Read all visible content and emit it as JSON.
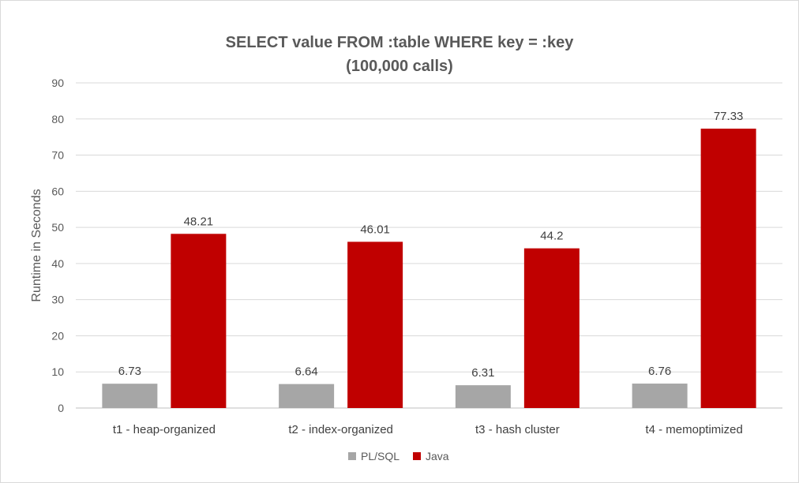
{
  "chart_data": {
    "type": "bar",
    "title_lines": [
      "SELECT value FROM :table WHERE key = :key",
      "(100,000 calls)"
    ],
    "xlabel": "",
    "ylabel": "Runtime in Seconds",
    "ylim": [
      0,
      90
    ],
    "yticks": [
      0,
      10,
      20,
      30,
      40,
      50,
      60,
      70,
      80,
      90
    ],
    "grid": true,
    "legend_position": "bottom",
    "categories": [
      "t1 - heap-organized",
      "t2 - index-organized",
      "t3 - hash cluster",
      "t4 - memoptimized"
    ],
    "series": [
      {
        "name": "PL/SQL",
        "color": "#a6a6a6",
        "values": [
          6.73,
          6.64,
          6.31,
          6.76
        ]
      },
      {
        "name": "Java",
        "color": "#c00000",
        "values": [
          48.21,
          46.01,
          44.2,
          77.33
        ]
      }
    ]
  }
}
